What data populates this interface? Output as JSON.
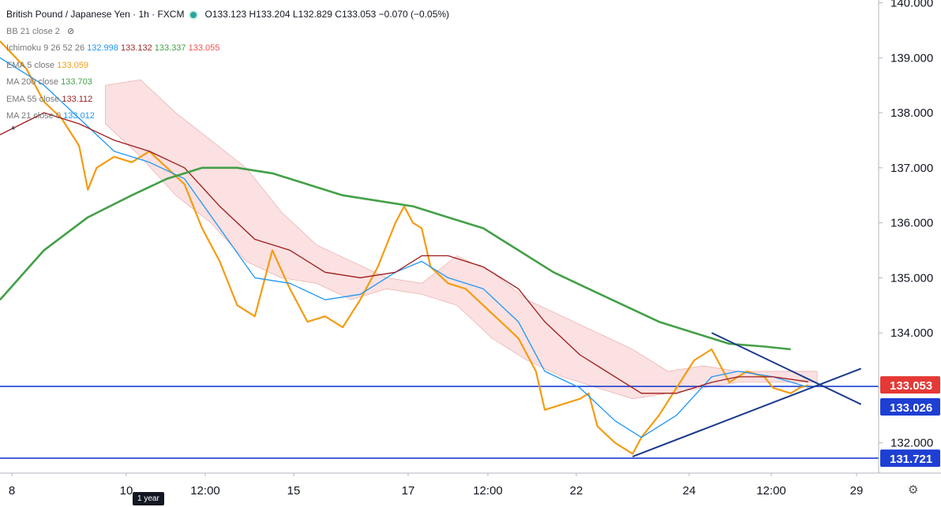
{
  "header": {
    "symbol": "British Pound / Japanese Yen · 1h · FXCM",
    "ohlc": "O133.123 H133.204 L132.829 C133.053 −0.070 (−0.05%)",
    "status_color": "#26a69a"
  },
  "indicators": [
    {
      "name": "BB 21 close 2",
      "values": [],
      "colors": []
    },
    {
      "name": "Ichimoku 9 26 52 26",
      "values": [
        "132.998",
        "133.132",
        "133.337",
        "133.055"
      ],
      "colors": [
        "#2196f3",
        "#9c2a2a",
        "#43a047",
        "#ef5350"
      ]
    },
    {
      "name": "EMA 5 close",
      "values": [
        "133.059"
      ],
      "colors": [
        "#f39c12"
      ]
    },
    {
      "name": "MA 200 close",
      "values": [
        "133.703"
      ],
      "colors": [
        "#43a047"
      ]
    },
    {
      "name": "EMA 55 close",
      "values": [
        "133.112"
      ],
      "colors": [
        "#9c1c1c"
      ]
    },
    {
      "name": "MA 21 close 0",
      "values": [
        "133.012"
      ],
      "colors": [
        "#2196f3"
      ]
    }
  ],
  "icons": {
    "visibility": "eye-off-icon",
    "collapse": "chevron-up-icon",
    "settings": "gear-icon"
  },
  "chart_data": {
    "type": "line",
    "title": "British Pound / Japanese Yen · 1h · FXCM",
    "x_ticks": [
      "8",
      "10",
      "12:00",
      "15",
      "17",
      "12:00",
      "22",
      "24",
      "12:00",
      "29"
    ],
    "y_ticks": [
      "140.000",
      "139.000",
      "138.000",
      "137.000",
      "136.000",
      "135.000",
      "134.000",
      "133.000",
      "132.000"
    ],
    "ylim": [
      131.45,
      140.05
    ],
    "price_labels": [
      {
        "value": 133.053,
        "text": "133.053",
        "color": "#e53935"
      },
      {
        "value": 133.026,
        "text": "133.026",
        "color": "#1e3fd4"
      },
      {
        "value": 131.721,
        "text": "131.721",
        "color": "#1e3fd4"
      }
    ],
    "horizontal_lines": [
      133.026,
      131.721
    ],
    "time_badge": "1 year",
    "series": [
      {
        "name": "EMA 5 close",
        "color": "#f39c12",
        "points": [
          [
            0,
            139.3
          ],
          [
            3,
            138.8
          ],
          [
            5,
            138.2
          ],
          [
            7,
            137.9
          ],
          [
            9,
            137.4
          ],
          [
            10,
            136.6
          ],
          [
            11,
            137.0
          ],
          [
            13,
            137.2
          ],
          [
            15,
            137.1
          ],
          [
            17,
            137.3
          ],
          [
            19,
            137.0
          ],
          [
            21,
            136.7
          ],
          [
            23,
            135.9
          ],
          [
            25,
            135.3
          ],
          [
            27,
            134.5
          ],
          [
            29,
            134.3
          ],
          [
            31,
            135.5
          ],
          [
            33,
            134.8
          ],
          [
            35,
            134.2
          ],
          [
            37,
            134.3
          ],
          [
            39,
            134.1
          ],
          [
            41,
            134.6
          ],
          [
            43,
            135.2
          ],
          [
            45,
            136.0
          ],
          [
            46,
            136.3
          ],
          [
            47,
            136.0
          ],
          [
            48,
            135.9
          ],
          [
            49,
            135.2
          ],
          [
            51,
            134.9
          ],
          [
            53,
            134.8
          ],
          [
            55,
            134.5
          ],
          [
            57,
            134.2
          ],
          [
            59,
            133.9
          ],
          [
            61,
            133.3
          ],
          [
            62,
            132.6
          ],
          [
            64,
            132.7
          ],
          [
            66,
            132.8
          ],
          [
            67,
            132.9
          ],
          [
            68,
            132.3
          ],
          [
            70,
            132.0
          ],
          [
            72,
            131.8
          ],
          [
            73,
            132.1
          ],
          [
            75,
            132.5
          ],
          [
            77,
            133.0
          ],
          [
            79,
            133.5
          ],
          [
            81,
            133.7
          ],
          [
            82,
            133.4
          ],
          [
            83,
            133.1
          ],
          [
            85,
            133.3
          ],
          [
            87,
            133.2
          ],
          [
            88,
            133.0
          ],
          [
            90,
            132.9
          ],
          [
            91,
            133.0
          ],
          [
            92,
            133.05
          ]
        ]
      },
      {
        "name": "MA 21 close 0",
        "color": "#2196f3",
        "points": [
          [
            0,
            139.0
          ],
          [
            5,
            138.5
          ],
          [
            9,
            137.9
          ],
          [
            13,
            137.3
          ],
          [
            17,
            137.1
          ],
          [
            21,
            136.8
          ],
          [
            25,
            135.9
          ],
          [
            29,
            135.0
          ],
          [
            33,
            134.9
          ],
          [
            37,
            134.6
          ],
          [
            41,
            134.7
          ],
          [
            45,
            135.1
          ],
          [
            48,
            135.3
          ],
          [
            51,
            135.0
          ],
          [
            55,
            134.8
          ],
          [
            59,
            134.2
          ],
          [
            62,
            133.3
          ],
          [
            66,
            133.0
          ],
          [
            70,
            132.4
          ],
          [
            73,
            132.1
          ],
          [
            77,
            132.5
          ],
          [
            81,
            133.2
          ],
          [
            84,
            133.3
          ],
          [
            88,
            133.2
          ],
          [
            92,
            133.01
          ]
        ]
      },
      {
        "name": "EMA 55 close",
        "color": "#9c1c1c",
        "points": [
          [
            0,
            137.6
          ],
          [
            5,
            138.0
          ],
          [
            9,
            137.8
          ],
          [
            13,
            137.5
          ],
          [
            17,
            137.3
          ],
          [
            21,
            137.0
          ],
          [
            25,
            136.3
          ],
          [
            29,
            135.7
          ],
          [
            33,
            135.5
          ],
          [
            37,
            135.1
          ],
          [
            41,
            135.0
          ],
          [
            45,
            135.1
          ],
          [
            48,
            135.4
          ],
          [
            51,
            135.4
          ],
          [
            55,
            135.2
          ],
          [
            59,
            134.8
          ],
          [
            62,
            134.2
          ],
          [
            66,
            133.6
          ],
          [
            70,
            133.2
          ],
          [
            73,
            132.9
          ],
          [
            77,
            132.9
          ],
          [
            81,
            133.1
          ],
          [
            84,
            133.2
          ],
          [
            88,
            133.2
          ],
          [
            92,
            133.11
          ]
        ]
      },
      {
        "name": "MA 200 close",
        "color": "#43a047",
        "points": [
          [
            0,
            134.6
          ],
          [
            5,
            135.5
          ],
          [
            10,
            136.1
          ],
          [
            15,
            136.5
          ],
          [
            19,
            136.8
          ],
          [
            23,
            137.0
          ],
          [
            27,
            137.0
          ],
          [
            31,
            136.9
          ],
          [
            35,
            136.7
          ],
          [
            39,
            136.5
          ],
          [
            43,
            136.4
          ],
          [
            47,
            136.3
          ],
          [
            51,
            136.1
          ],
          [
            55,
            135.9
          ],
          [
            59,
            135.5
          ],
          [
            63,
            135.1
          ],
          [
            67,
            134.8
          ],
          [
            71,
            134.5
          ],
          [
            75,
            134.2
          ],
          [
            79,
            134.0
          ],
          [
            83,
            133.8
          ],
          [
            87,
            133.75
          ],
          [
            90,
            133.7
          ]
        ]
      }
    ],
    "trendlines": [
      {
        "from": [
          81,
          134.0
        ],
        "to": [
          98,
          132.7
        ],
        "color": "#1a3a8c"
      },
      {
        "from": [
          72,
          131.75
        ],
        "to": [
          98,
          133.35
        ],
        "color": "#1a3a8c"
      }
    ]
  }
}
